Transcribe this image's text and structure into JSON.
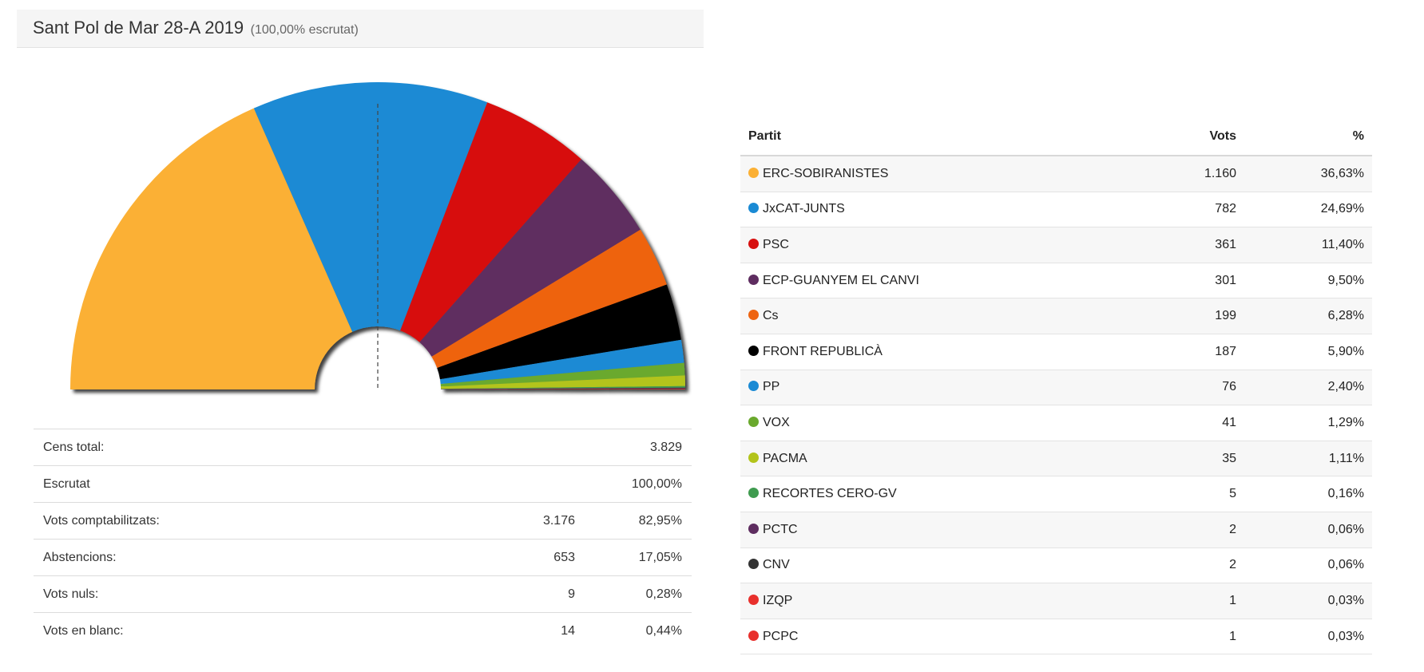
{
  "header": {
    "title": "Sant Pol de Mar 28-A 2019",
    "subtitle": "(100,00% escrutat)"
  },
  "stats": [
    {
      "label": "Cens total:",
      "value": "",
      "pct": "3.829"
    },
    {
      "label": "Escrutat",
      "value": "",
      "pct": "100,00%"
    },
    {
      "label": "Vots comptabilitzats:",
      "value": "3.176",
      "pct": "82,95%"
    },
    {
      "label": "Abstencions:",
      "value": "653",
      "pct": "17,05%"
    },
    {
      "label": "Vots nuls:",
      "value": "9",
      "pct": "0,28%"
    },
    {
      "label": "Vots en blanc:",
      "value": "14",
      "pct": "0,44%"
    }
  ],
  "party_table": {
    "headers": {
      "party": "Partit",
      "votes": "Vots",
      "pct": "%"
    }
  },
  "chart_data": {
    "type": "pie",
    "variant": "half-donut",
    "categories": [
      "ERC-SOBIRANISTES",
      "JxCAT-JUNTS",
      "PSC",
      "ECP-GUANYEM EL CANVI",
      "Cs",
      "FRONT REPUBLICÀ",
      "PP",
      "VOX",
      "PACMA",
      "RECORTES CERO-GV",
      "PCTC",
      "CNV",
      "IZQP",
      "PCPC"
    ],
    "values": [
      1160,
      782,
      361,
      301,
      199,
      187,
      76,
      41,
      35,
      5,
      2,
      2,
      1,
      1
    ],
    "votes_labels": [
      "1.160",
      "782",
      "361",
      "301",
      "199",
      "187",
      "76",
      "41",
      "35",
      "5",
      "2",
      "2",
      "1",
      "1"
    ],
    "pct_labels": [
      "36,63%",
      "24,69%",
      "11,40%",
      "9,50%",
      "6,28%",
      "5,90%",
      "2,40%",
      "1,29%",
      "1,11%",
      "0,16%",
      "0,06%",
      "0,06%",
      "0,03%",
      "0,03%"
    ],
    "colors": [
      "#fbb034",
      "#1a8ad4",
      "#d7100f",
      "#5e2d60",
      "#ee6411",
      "#000000",
      "#1a8ad4",
      "#6aa92d",
      "#b3c41b",
      "#3f9b4f",
      "#5e2d60",
      "#333333",
      "#e8302c",
      "#e8302c"
    ],
    "legend": "table-right"
  }
}
